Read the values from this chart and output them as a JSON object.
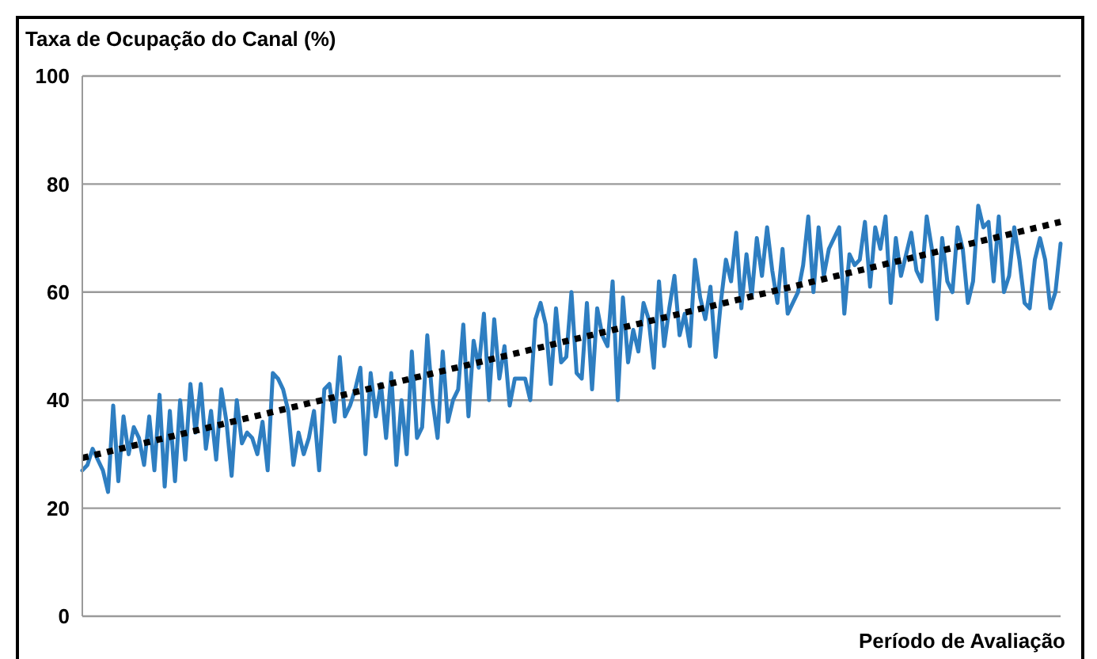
{
  "chart_data": {
    "type": "line",
    "ylabel": "Taxa de Ocupação do Canal  (%)",
    "xlabel": "Período de Avaliação",
    "ylim": [
      0,
      100
    ],
    "yticks": [
      0,
      20,
      40,
      60,
      80,
      100
    ],
    "grid": "y",
    "legend": false,
    "marker": "none",
    "tick_labels": "y",
    "categories": [
      null,
      null,
      null,
      null,
      null,
      null,
      null,
      null,
      null,
      null,
      null,
      null,
      null,
      null,
      null,
      null,
      null,
      null,
      null,
      null,
      null,
      null,
      null,
      null,
      null,
      null,
      null,
      null,
      null,
      null,
      null,
      null,
      null,
      null,
      null,
      null,
      null,
      null,
      null,
      null,
      null,
      null,
      null,
      null,
      null,
      null,
      null,
      null,
      null,
      null,
      null,
      null,
      null,
      null,
      null,
      null,
      null,
      null,
      null,
      null,
      null,
      null,
      null,
      null,
      null,
      null,
      null,
      null,
      null,
      null,
      null,
      null,
      null,
      null,
      null,
      null,
      null,
      null,
      null,
      null,
      null,
      null,
      null,
      null,
      null,
      null,
      null,
      null,
      null,
      null,
      null,
      null,
      null,
      null,
      null,
      null,
      null,
      null,
      null,
      null,
      null,
      null,
      null,
      null,
      null,
      null,
      null,
      null,
      null,
      null,
      null,
      null,
      null,
      null,
      null,
      null,
      null,
      null,
      null,
      null,
      null,
      null,
      null,
      null,
      null,
      null,
      null,
      null,
      null,
      null,
      null,
      null,
      null,
      null,
      null,
      null,
      null,
      null,
      null,
      null,
      null,
      null,
      null,
      null,
      null,
      null,
      null,
      null,
      null,
      null,
      null,
      null,
      null,
      null,
      null,
      null,
      null,
      null,
      null,
      null,
      null,
      null,
      null,
      null,
      null,
      null,
      null,
      null,
      null,
      null,
      null,
      null,
      null,
      null,
      null,
      null,
      null,
      null,
      null,
      null,
      null,
      null,
      null,
      null,
      null,
      null,
      null,
      null,
      null,
      null,
      null
    ],
    "series": [
      {
        "color": "#2e7ec1",
        "line_style": "solid",
        "values": [
          27,
          28,
          31,
          29,
          27,
          23,
          39,
          25,
          37,
          30,
          35,
          33,
          28,
          37,
          27,
          41,
          24,
          38,
          25,
          40,
          29,
          43,
          34,
          43,
          31,
          38,
          29,
          42,
          36,
          26,
          40,
          32,
          34,
          33,
          30,
          36,
          27,
          45,
          44,
          42,
          38,
          28,
          34,
          30,
          33,
          38,
          27,
          42,
          43,
          36,
          48,
          37,
          39,
          42,
          46,
          30,
          45,
          37,
          43,
          33,
          45,
          28,
          40,
          30,
          49,
          33,
          35,
          52,
          40,
          33,
          49,
          36,
          40,
          42,
          54,
          37,
          51,
          46,
          56,
          40,
          55,
          44,
          50,
          39,
          44,
          44,
          44,
          40,
          55,
          58,
          54,
          43,
          57,
          47,
          48,
          60,
          45,
          44,
          58,
          42,
          57,
          52,
          50,
          62,
          40,
          59,
          47,
          53,
          49,
          58,
          55,
          46,
          62,
          50,
          57,
          63,
          52,
          56,
          50,
          66,
          59,
          55,
          61,
          48,
          58,
          66,
          62,
          71,
          57,
          67,
          59,
          70,
          63,
          72,
          64,
          58,
          68,
          56,
          58,
          60,
          65,
          74,
          60,
          72,
          63,
          68,
          70,
          72,
          56,
          67,
          65,
          66,
          73,
          61,
          72,
          68,
          74,
          58,
          70,
          63,
          67,
          71,
          64,
          62,
          74,
          68,
          55,
          70,
          62,
          60,
          72,
          68,
          58,
          62,
          76,
          72,
          73,
          62,
          74,
          60,
          63,
          72,
          66,
          58,
          57,
          66,
          70,
          66,
          57,
          60,
          69
        ]
      },
      {
        "type": "line",
        "color": "#000000",
        "line_style": "dotted",
        "values": [
          29.3,
          29.53,
          29.76,
          29.99,
          30.22,
          30.45,
          30.68,
          30.91,
          31.14,
          31.37,
          31.6,
          31.83,
          32.06,
          32.29,
          32.52,
          32.75,
          32.98,
          33.21,
          33.44,
          33.67,
          33.9,
          34.13,
          34.36,
          34.59,
          34.82,
          35.05,
          35.28,
          35.51,
          35.74,
          35.97,
          36.2,
          36.43,
          36.66,
          36.89,
          37.12,
          37.35,
          37.58,
          37.81,
          38.04,
          38.27,
          38.5,
          38.73,
          38.96,
          39.19,
          39.42,
          39.65,
          39.88,
          40.11,
          40.34,
          40.57,
          40.8,
          41.03,
          41.26,
          41.49,
          41.72,
          41.95,
          42.18,
          42.41,
          42.64,
          42.87,
          43.1,
          43.33,
          43.56,
          43.79,
          44.02,
          44.25,
          44.48,
          44.71,
          44.94,
          45.17,
          45.4,
          45.63,
          45.86,
          46.09,
          46.32,
          46.55,
          46.78,
          47.01,
          47.24,
          47.47,
          47.7,
          47.93,
          48.16,
          48.39,
          48.62,
          48.85,
          49.08,
          49.31,
          49.54,
          49.77,
          50,
          50.23,
          50.46,
          50.69,
          50.92,
          51.15,
          51.38,
          51.61,
          51.84,
          52.07,
          52.3,
          52.53,
          52.76,
          52.99,
          53.22,
          53.45,
          53.68,
          53.91,
          54.14,
          54.37,
          54.6,
          54.83,
          55.06,
          55.29,
          55.52,
          55.75,
          55.98,
          56.21,
          56.44,
          56.67,
          56.9,
          57.13,
          57.36,
          57.59,
          57.82,
          58.05,
          58.28,
          58.51,
          58.74,
          58.97,
          59.2,
          59.43,
          59.66,
          59.89,
          60.12,
          60.35,
          60.58,
          60.81,
          61.04,
          61.27,
          61.5,
          61.73,
          61.96,
          62.19,
          62.42,
          62.65,
          62.88,
          63.11,
          63.34,
          63.57,
          63.8,
          64.03,
          64.26,
          64.49,
          64.72,
          64.95,
          65.18,
          65.41,
          65.64,
          65.87,
          66.1,
          66.33,
          66.56,
          66.79,
          67.02,
          67.25,
          67.48,
          67.71,
          67.94,
          68.17,
          68.4,
          68.63,
          68.86,
          69.09,
          69.32,
          69.55,
          69.78,
          70.01,
          70.24,
          70.47,
          70.7,
          70.93,
          71.16,
          71.39,
          71.62,
          71.85,
          72.08,
          72.31,
          72.54,
          72.77,
          73
        ]
      }
    ]
  }
}
